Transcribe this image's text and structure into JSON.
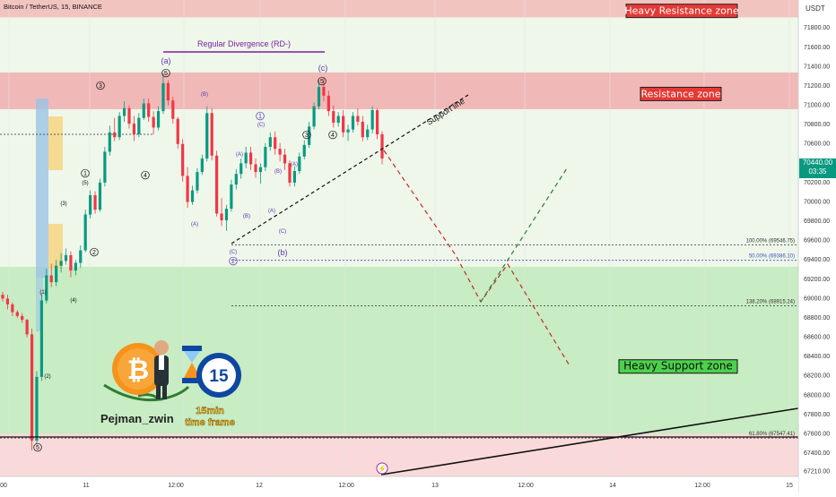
{
  "header": {
    "symbol_title": "Bitcoin / TetherUS, 15, BINANCE"
  },
  "currency_label": "USDT",
  "price_tag": {
    "price": "70440.00",
    "countdown": "03:35"
  },
  "chart_data": {
    "type": "candlestick",
    "ylim": [
      67150,
      72080
    ],
    "y_ticks": [
      71800,
      71600,
      71400,
      71200,
      71000,
      70800,
      70600,
      70200,
      70000,
      69800,
      69600,
      69400,
      69200,
      69000,
      68800,
      68600,
      68400,
      68200,
      68000,
      67800,
      67600,
      67400,
      67210
    ],
    "x_tick_labels": [
      "00",
      "11",
      "12:00",
      "12",
      "12:00",
      "13",
      "12:00",
      "14",
      "12:00",
      "15"
    ],
    "zones": [
      {
        "label": "Heavy Resistance zone",
        "from": 71900,
        "to": 72080,
        "color": "#f2c4c0"
      },
      {
        "label": "Resistance zone",
        "from": 70950,
        "to": 71330,
        "color": "#f0b9b8"
      },
      {
        "label": "Heavy Support zone",
        "from": 67590,
        "to": 69320,
        "color": "#c8ecc3"
      },
      {
        "label": "",
        "from": 67150,
        "to": 67590,
        "color": "#f9d9d9"
      }
    ],
    "fib_levels": [
      {
        "label": "100.00% (69546.75)",
        "price": 69546.75,
        "color": "#333333"
      },
      {
        "label": "50.00% (69386.10)",
        "price": 69386.1,
        "color": "#3f51b5"
      },
      {
        "label": "138.20% (68915.24)",
        "price": 68915.24,
        "color": "#333333"
      },
      {
        "label": "61.80% (67547.41)",
        "price": 67547.41,
        "color": "#333333"
      }
    ],
    "annotations": {
      "divergence": "Regular Divergence (RD-)",
      "support_line": "Support line",
      "wave_labels": [
        "(a)",
        "(b)",
        "(c)",
        "(A)",
        "(B)",
        "(C)",
        "(1)",
        "(2)",
        "(3)",
        "(4)",
        "(5)",
        "1",
        "2",
        "3",
        "4",
        "5"
      ]
    },
    "candles": [
      [
        69030,
        69060,
        68960,
        68990
      ],
      [
        68990,
        69030,
        68880,
        68930
      ],
      [
        68930,
        68950,
        68810,
        68850
      ],
      [
        68850,
        68870,
        68790,
        68810
      ],
      [
        68810,
        68840,
        68740,
        68770
      ],
      [
        68770,
        68780,
        68590,
        68620
      ],
      [
        68620,
        68680,
        67420,
        67520
      ],
      [
        67520,
        68240,
        67480,
        68180
      ],
      [
        68180,
        69040,
        68140,
        68970
      ],
      [
        68970,
        69300,
        68940,
        69230
      ],
      [
        69230,
        69350,
        69110,
        69160
      ],
      [
        69160,
        69390,
        69120,
        69330
      ],
      [
        69330,
        69460,
        69260,
        69380
      ],
      [
        69380,
        69510,
        69340,
        69440
      ],
      [
        69440,
        69480,
        69210,
        69280
      ],
      [
        69280,
        69390,
        69230,
        69360
      ],
      [
        69360,
        69540,
        69310,
        69490
      ],
      [
        69490,
        69910,
        69470,
        69860
      ],
      [
        69860,
        70110,
        69820,
        70060
      ],
      [
        70060,
        70100,
        69870,
        69910
      ],
      [
        69910,
        70230,
        69890,
        70190
      ],
      [
        70190,
        70560,
        70150,
        70510
      ],
      [
        70510,
        70780,
        70470,
        70710
      ],
      [
        70710,
        70860,
        70620,
        70660
      ],
      [
        70660,
        70920,
        70630,
        70880
      ],
      [
        70880,
        71030,
        70820,
        70960
      ],
      [
        70960,
        70990,
        70750,
        70800
      ],
      [
        70800,
        70880,
        70620,
        70690
      ],
      [
        70690,
        70910,
        70660,
        70860
      ],
      [
        70860,
        71060,
        70840,
        71010
      ],
      [
        71010,
        71060,
        70820,
        70870
      ],
      [
        70870,
        70930,
        70690,
        70760
      ],
      [
        70760,
        70980,
        70730,
        70930
      ],
      [
        70930,
        71320,
        70900,
        71220
      ],
      [
        71220,
        71250,
        70990,
        71040
      ],
      [
        71040,
        71080,
        70800,
        70850
      ],
      [
        70850,
        70870,
        70540,
        70590
      ],
      [
        70590,
        70640,
        70200,
        70260
      ],
      [
        70260,
        70350,
        69930,
        69990
      ],
      [
        69990,
        70160,
        69960,
        70110
      ],
      [
        70110,
        70340,
        70080,
        70300
      ],
      [
        70300,
        70480,
        70270,
        70440
      ],
      [
        70440,
        70980,
        70410,
        70910
      ],
      [
        70910,
        70960,
        70420,
        70470
      ],
      [
        70470,
        70520,
        69840,
        69870
      ],
      [
        69870,
        70030,
        69740,
        69800
      ],
      [
        69800,
        69960,
        69690,
        69920
      ],
      [
        69920,
        70220,
        69890,
        70170
      ],
      [
        70170,
        70330,
        70120,
        70280
      ],
      [
        70280,
        70440,
        70230,
        70390
      ],
      [
        70390,
        70560,
        70340,
        70500
      ],
      [
        70500,
        70560,
        70320,
        70380
      ],
      [
        70380,
        70440,
        70240,
        70300
      ],
      [
        70300,
        70390,
        70180,
        70350
      ],
      [
        70350,
        70600,
        70310,
        70560
      ],
      [
        70560,
        70710,
        70520,
        70660
      ],
      [
        70660,
        70720,
        70480,
        70540
      ],
      [
        70540,
        70600,
        70410,
        70480
      ],
      [
        70480,
        70540,
        70320,
        70390
      ],
      [
        70390,
        70420,
        70150,
        70190
      ],
      [
        70190,
        70360,
        70150,
        70310
      ],
      [
        70310,
        70500,
        70280,
        70460
      ],
      [
        70460,
        70630,
        70430,
        70580
      ],
      [
        70580,
        70820,
        70550,
        70770
      ],
      [
        70770,
        71020,
        70740,
        70980
      ],
      [
        70980,
        71250,
        70950,
        71180
      ],
      [
        71180,
        71280,
        71030,
        71090
      ],
      [
        71090,
        71140,
        70880,
        70930
      ],
      [
        70930,
        70990,
        70760,
        70810
      ],
      [
        70810,
        70920,
        70770,
        70880
      ],
      [
        70880,
        70940,
        70660,
        70710
      ],
      [
        70710,
        70790,
        70620,
        70740
      ],
      [
        70740,
        70920,
        70710,
        70880
      ],
      [
        70880,
        70960,
        70780,
        70820
      ],
      [
        70820,
        70880,
        70620,
        70660
      ],
      [
        70660,
        70790,
        70630,
        70740
      ],
      [
        70740,
        70980,
        70700,
        70940
      ],
      [
        70940,
        70960,
        70640,
        70690
      ],
      [
        70690,
        70720,
        70380,
        70440
      ]
    ]
  }
}
